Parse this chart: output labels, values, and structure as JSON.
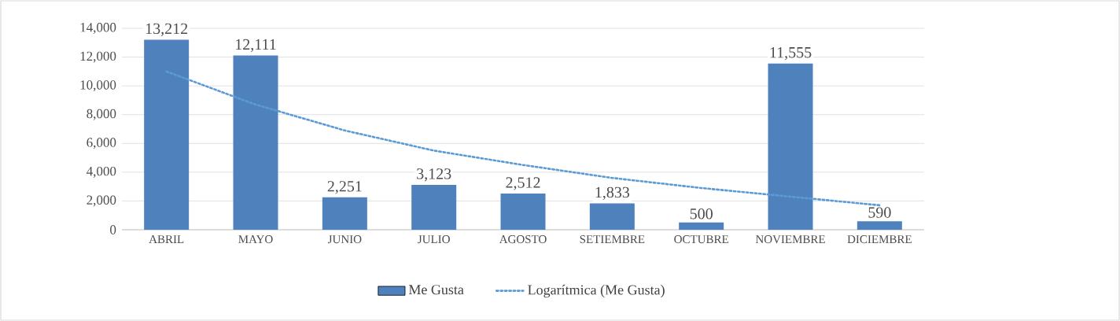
{
  "chart_data": {
    "type": "bar",
    "categories": [
      "ABRIL",
      "MAYO",
      "JUNIO",
      "JULIO",
      "AGOSTO",
      "SETIEMBRE",
      "OCTUBRE",
      "NOVIEMBRE",
      "DICIEMBRE"
    ],
    "series": [
      {
        "name": "Me Gusta",
        "color": "#4f81bd",
        "values": [
          13212,
          12111,
          2251,
          3123,
          2512,
          1833,
          500,
          11555,
          590
        ],
        "value_labels": [
          "13,212",
          "12,111",
          "2,251",
          "3,123",
          "2,512",
          "1,833",
          "500",
          "11,555",
          "590"
        ]
      },
      {
        "name": "Logarítmica (Me Gusta)",
        "type": "line",
        "line_style": "dotted",
        "color": "#5b9bd5",
        "values": [
          11000,
          8700,
          6900,
          5500,
          4500,
          3600,
          2900,
          2300,
          1700
        ]
      }
    ],
    "ylim": [
      0,
      14000
    ],
    "yticks": [
      0,
      {
        "value": 2000,
        "label": "2,000"
      },
      {
        "value": 4000,
        "label": "4,000"
      },
      {
        "value": 6000,
        "label": "6,000"
      },
      {
        "value": 8000,
        "label": "8,000"
      },
      {
        "value": 10000,
        "label": "10,000"
      },
      {
        "value": 12000,
        "label": "12,000"
      },
      {
        "value": 14000,
        "label": "14,000"
      }
    ],
    "grid": "y",
    "legend": "bottom"
  }
}
